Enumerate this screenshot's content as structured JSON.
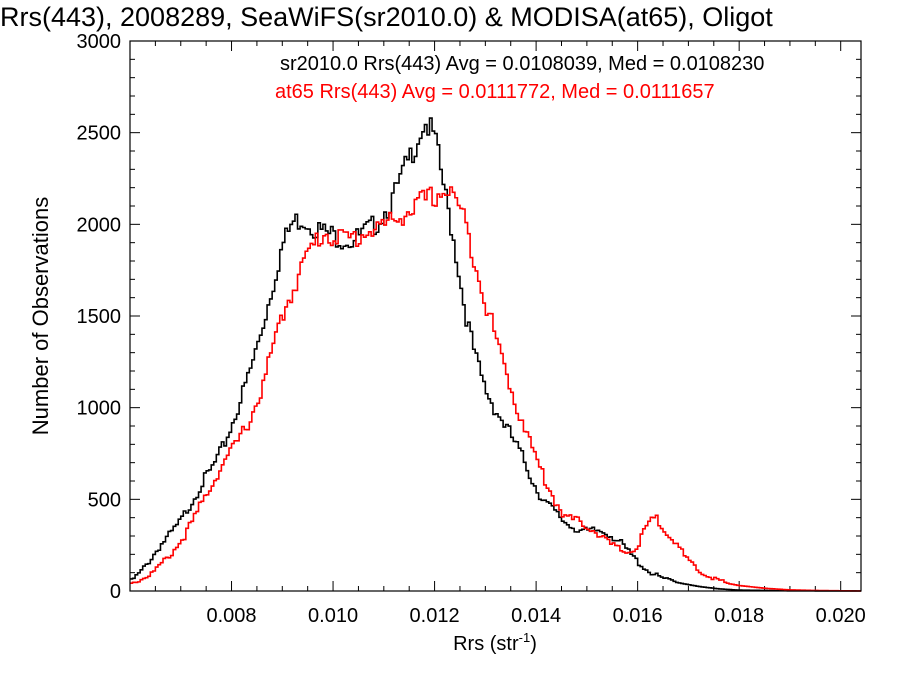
{
  "chart_data": {
    "type": "line",
    "title": "Rrs(443), 2008289, SeaWiFS(sr2010.0) & MODISA(at65), Oligot",
    "xlabel_main": "Rrs (str",
    "xlabel_sup": "-1",
    "xlabel_end": ")",
    "ylabel": "Number of Observations",
    "xlim": [
      0.006,
      0.0204
    ],
    "ylim": [
      0,
      3000
    ],
    "xticks": [
      0.008,
      0.01,
      0.012,
      0.014,
      0.016,
      0.018,
      0.02
    ],
    "xtick_labels": [
      "0.008",
      "0.010",
      "0.012",
      "0.014",
      "0.016",
      "0.018",
      "0.020"
    ],
    "yticks": [
      0,
      500,
      1000,
      1500,
      2000,
      2500,
      3000
    ],
    "ytick_labels": [
      "0",
      "500",
      "1000",
      "1500",
      "2000",
      "2500",
      "3000"
    ],
    "grid": false,
    "series": [
      {
        "name": "sr2010.0",
        "color": "#000000",
        "annotation": "sr2010.0 Rrs(443) Avg = 0.0108039, Med = 0.0108230",
        "points": [
          [
            0.006,
            50
          ],
          [
            0.0062,
            100
          ],
          [
            0.0064,
            170
          ],
          [
            0.0066,
            250
          ],
          [
            0.0068,
            310
          ],
          [
            0.007,
            380
          ],
          [
            0.0072,
            480
          ],
          [
            0.0074,
            580
          ],
          [
            0.0076,
            660
          ],
          [
            0.0078,
            760
          ],
          [
            0.008,
            900
          ],
          [
            0.0082,
            1060
          ],
          [
            0.0084,
            1230
          ],
          [
            0.0086,
            1430
          ],
          [
            0.0088,
            1650
          ],
          [
            0.009,
            1880
          ],
          [
            0.0092,
            2010
          ],
          [
            0.0094,
            2030
          ],
          [
            0.0096,
            1990
          ],
          [
            0.0098,
            1960
          ],
          [
            0.01,
            1940
          ],
          [
            0.0102,
            1920
          ],
          [
            0.0104,
            1910
          ],
          [
            0.0106,
            1950
          ],
          [
            0.0108,
            1990
          ],
          [
            0.011,
            2060
          ],
          [
            0.0112,
            2150
          ],
          [
            0.0114,
            2290
          ],
          [
            0.0116,
            2420
          ],
          [
            0.0118,
            2560
          ],
          [
            0.012,
            2480
          ],
          [
            0.0122,
            2180
          ],
          [
            0.0124,
            1880
          ],
          [
            0.0126,
            1530
          ],
          [
            0.0128,
            1280
          ],
          [
            0.013,
            1100
          ],
          [
            0.0132,
            990
          ],
          [
            0.0134,
            900
          ],
          [
            0.0136,
            800
          ],
          [
            0.0138,
            690
          ],
          [
            0.014,
            560
          ],
          [
            0.0142,
            480
          ],
          [
            0.0144,
            420
          ],
          [
            0.0146,
            370
          ],
          [
            0.0148,
            340
          ],
          [
            0.015,
            320
          ],
          [
            0.0152,
            330
          ],
          [
            0.0154,
            320
          ],
          [
            0.0156,
            280
          ],
          [
            0.0158,
            220
          ],
          [
            0.016,
            160
          ],
          [
            0.0162,
            110
          ],
          [
            0.0164,
            80
          ],
          [
            0.0166,
            60
          ],
          [
            0.0168,
            45
          ],
          [
            0.017,
            35
          ],
          [
            0.0172,
            25
          ],
          [
            0.0174,
            18
          ],
          [
            0.0176,
            12
          ],
          [
            0.0178,
            8
          ],
          [
            0.018,
            5
          ],
          [
            0.0185,
            3
          ],
          [
            0.019,
            1
          ],
          [
            0.0204,
            0
          ]
        ]
      },
      {
        "name": "at65",
        "color": "#ff0000",
        "annotation": "at65 Rrs(443) Avg = 0.0111772, Med = 0.0111657",
        "points": [
          [
            0.006,
            40
          ],
          [
            0.0062,
            60
          ],
          [
            0.0064,
            90
          ],
          [
            0.0066,
            140
          ],
          [
            0.0068,
            200
          ],
          [
            0.007,
            270
          ],
          [
            0.0072,
            360
          ],
          [
            0.0074,
            470
          ],
          [
            0.0076,
            580
          ],
          [
            0.0078,
            680
          ],
          [
            0.008,
            760
          ],
          [
            0.0082,
            850
          ],
          [
            0.0084,
            960
          ],
          [
            0.0086,
            1100
          ],
          [
            0.0088,
            1310
          ],
          [
            0.009,
            1500
          ],
          [
            0.0092,
            1640
          ],
          [
            0.0094,
            1780
          ],
          [
            0.0096,
            1880
          ],
          [
            0.0098,
            1950
          ],
          [
            0.01,
            1940
          ],
          [
            0.0102,
            1920
          ],
          [
            0.0104,
            1920
          ],
          [
            0.0106,
            1950
          ],
          [
            0.0108,
            1980
          ],
          [
            0.011,
            1990
          ],
          [
            0.0112,
            2020
          ],
          [
            0.0114,
            2060
          ],
          [
            0.0116,
            2090
          ],
          [
            0.0118,
            2130
          ],
          [
            0.012,
            2150
          ],
          [
            0.0122,
            2190
          ],
          [
            0.0124,
            2150
          ],
          [
            0.0126,
            2010
          ],
          [
            0.0128,
            1800
          ],
          [
            0.013,
            1580
          ],
          [
            0.0132,
            1390
          ],
          [
            0.0134,
            1200
          ],
          [
            0.0136,
            1020
          ],
          [
            0.0138,
            880
          ],
          [
            0.014,
            720
          ],
          [
            0.0142,
            590
          ],
          [
            0.0144,
            480
          ],
          [
            0.0146,
            400
          ],
          [
            0.0148,
            380
          ],
          [
            0.015,
            360
          ],
          [
            0.0152,
            320
          ],
          [
            0.0154,
            270
          ],
          [
            0.0156,
            230
          ],
          [
            0.0158,
            210
          ],
          [
            0.016,
            240
          ],
          [
            0.0162,
            370
          ],
          [
            0.0164,
            390
          ],
          [
            0.0166,
            320
          ],
          [
            0.0168,
            240
          ],
          [
            0.017,
            160
          ],
          [
            0.0172,
            110
          ],
          [
            0.0174,
            80
          ],
          [
            0.0176,
            60
          ],
          [
            0.0178,
            40
          ],
          [
            0.018,
            30
          ],
          [
            0.0185,
            15
          ],
          [
            0.019,
            6
          ],
          [
            0.0195,
            3
          ],
          [
            0.0204,
            0
          ]
        ]
      }
    ]
  }
}
